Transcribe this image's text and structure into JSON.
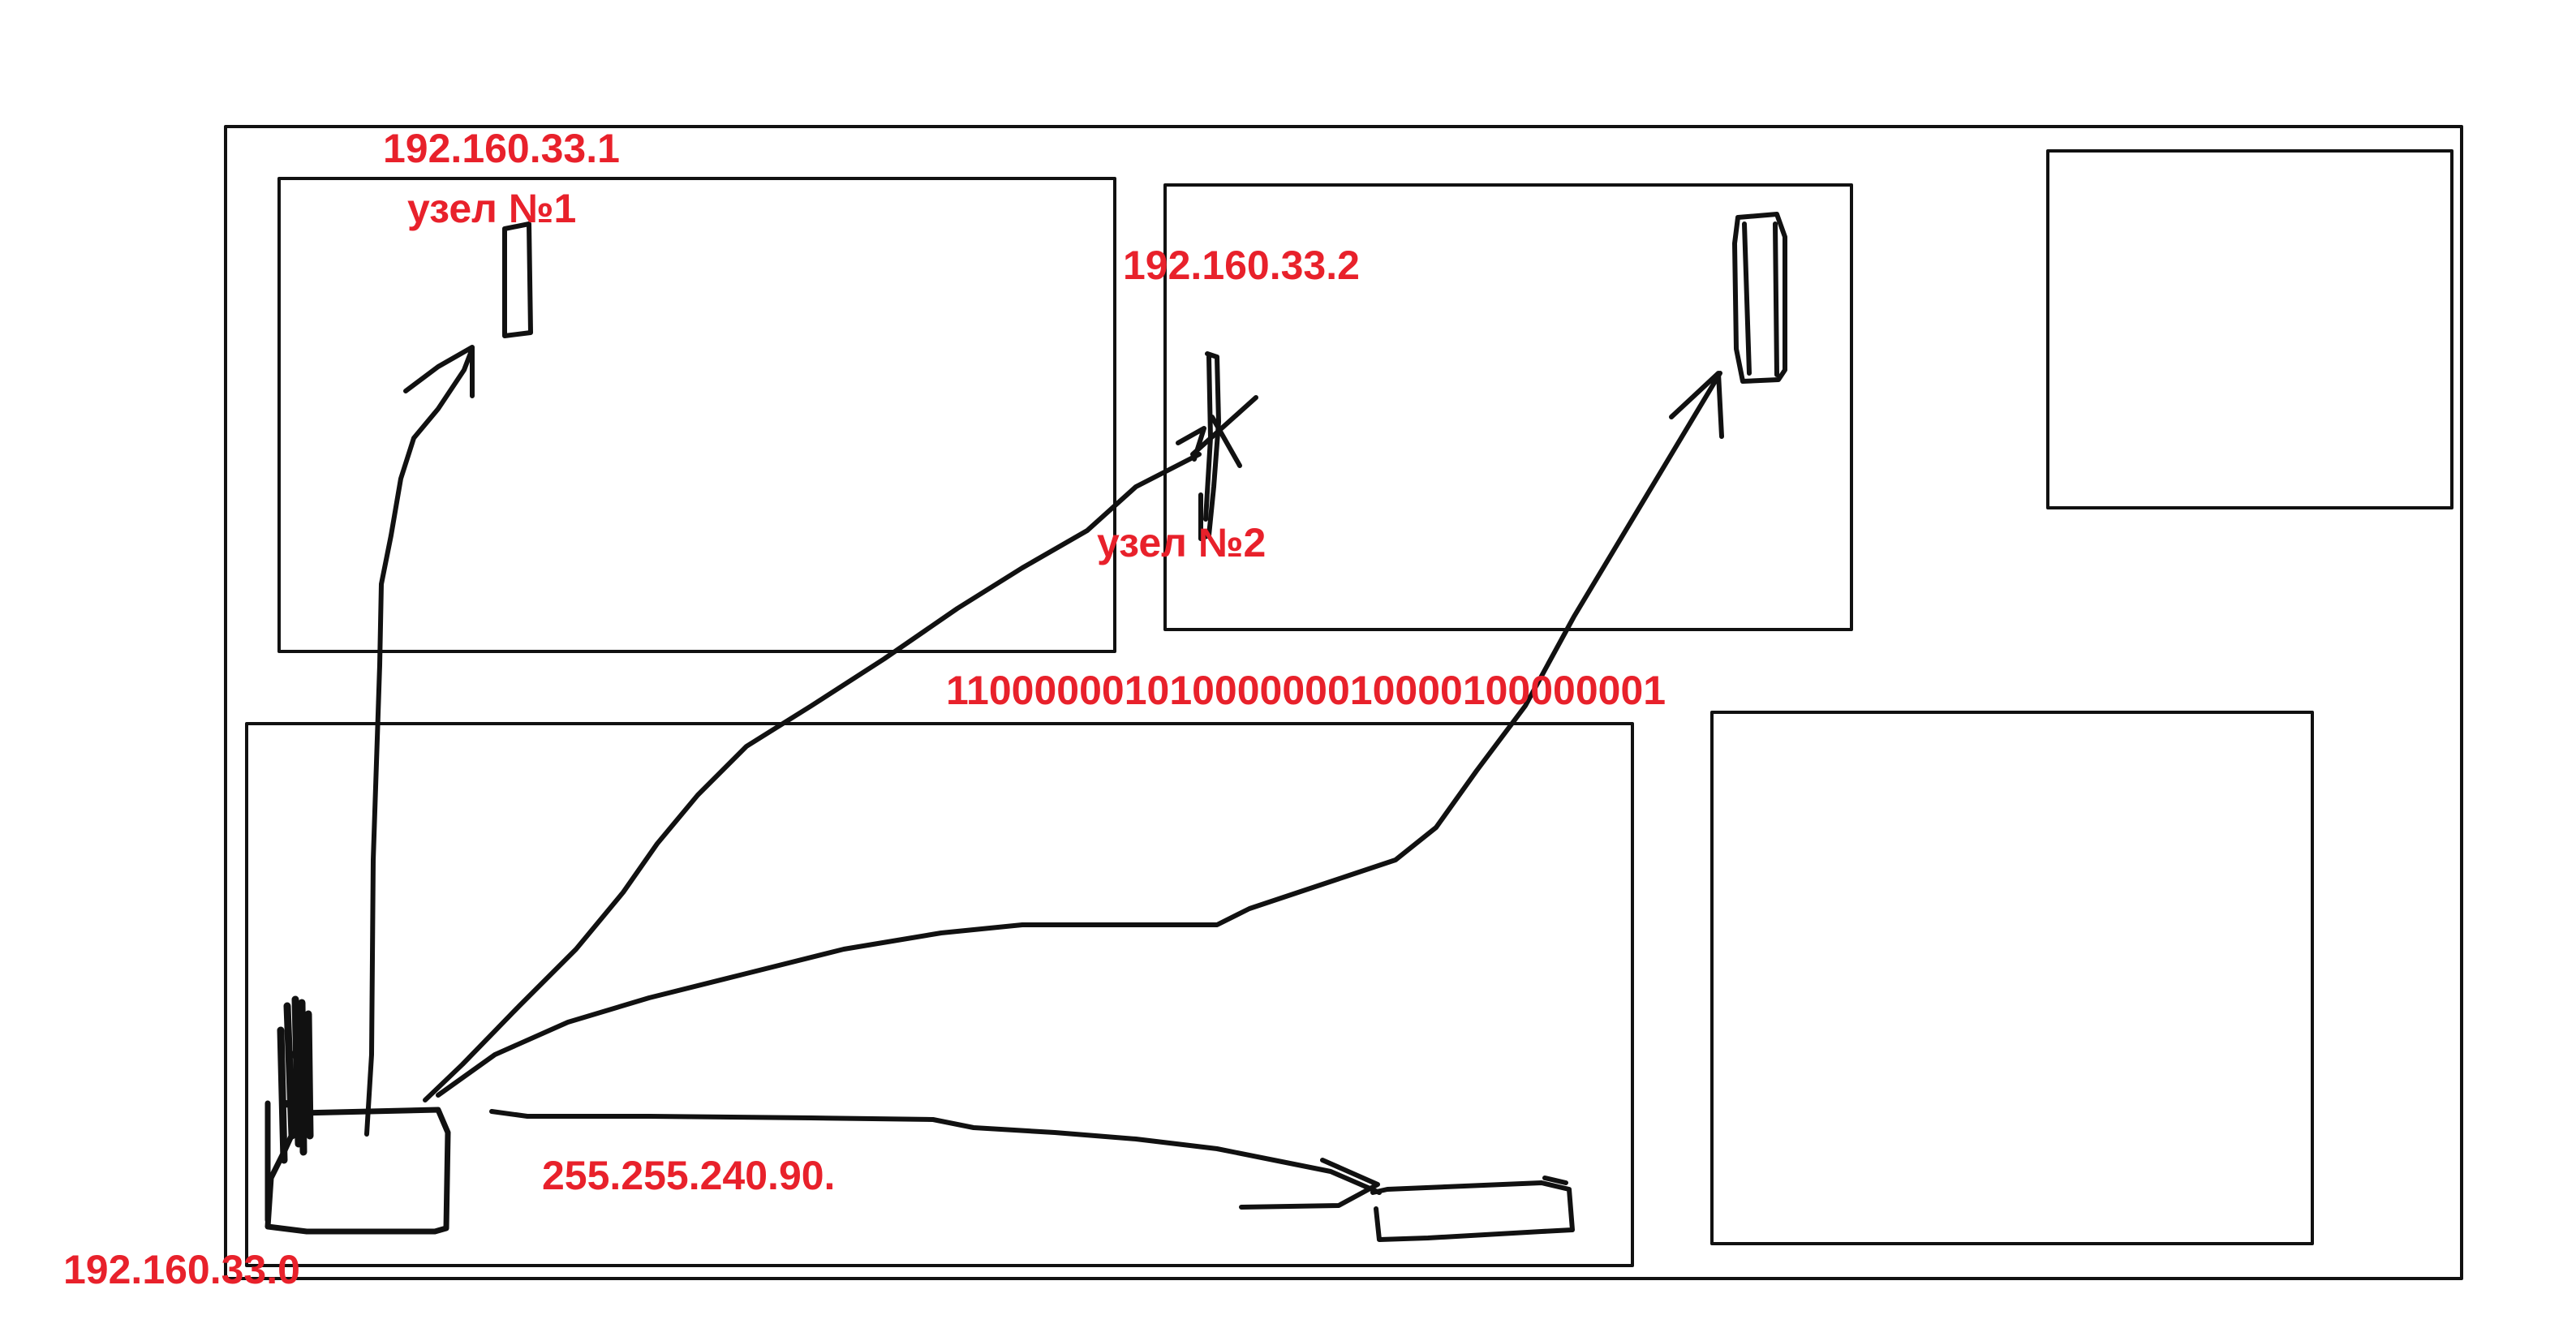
{
  "colors": {
    "ink": "#111111",
    "annotation": "#e8212b",
    "background": "#ffffff"
  },
  "labels": {
    "node1_ip": "192.160.33.1",
    "node1_name": "узел №1",
    "node2_ip": "192.160.33.2",
    "node2_name": "узел №2",
    "binary_address": "11000000101000000010000100000001",
    "subnet_mask": "255.255.240.90.",
    "network_address": "192.160.33.0"
  }
}
